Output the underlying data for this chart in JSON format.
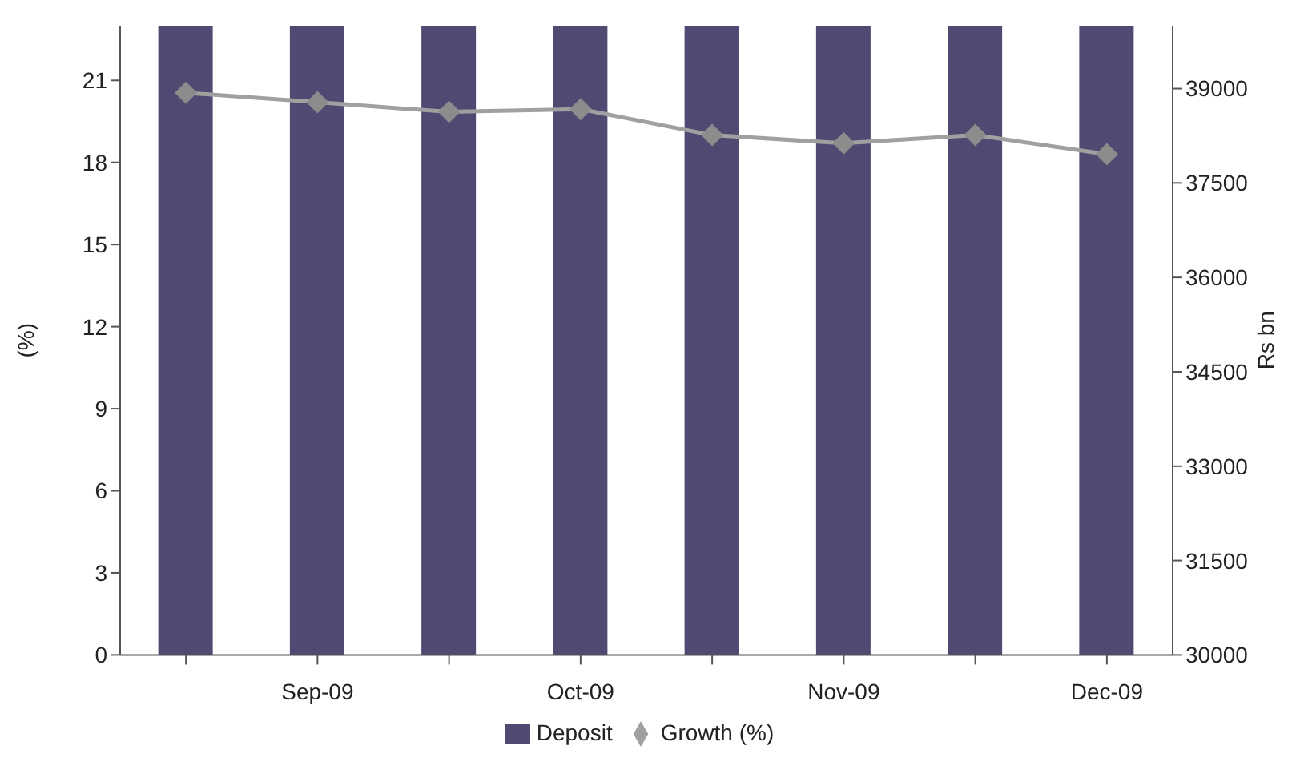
{
  "chart_data": {
    "type": "bar",
    "categories": [
      null,
      "Sep-09",
      null,
      "Oct-09",
      null,
      "Nov-09",
      null,
      "Dec-09"
    ],
    "ylabel": "(%)",
    "y2label": "Rs bn",
    "series": [
      {
        "name": "Deposit",
        "axis": "y2",
        "color": "#4f4a72",
        "values": [
          40000,
          40000,
          40000,
          40000,
          40000,
          40000,
          40000,
          40000
        ]
      },
      {
        "name": "Growth (%)",
        "type": "line",
        "axis": "y",
        "color": "#a0a0a0",
        "marker": "diamond",
        "values": [
          20.55,
          20.2,
          19.85,
          19.95,
          19.0,
          18.7,
          19.0,
          18.3
        ]
      }
    ],
    "ylim": [
      0,
      23
    ],
    "yticks": [
      0,
      3,
      6,
      9,
      12,
      15,
      18,
      21
    ],
    "y2lim": [
      30000,
      40000
    ],
    "y2ticks": [
      30000,
      31500,
      33000,
      34500,
      36000,
      37500,
      39000
    ],
    "grid": false,
    "legend": "bottom"
  }
}
